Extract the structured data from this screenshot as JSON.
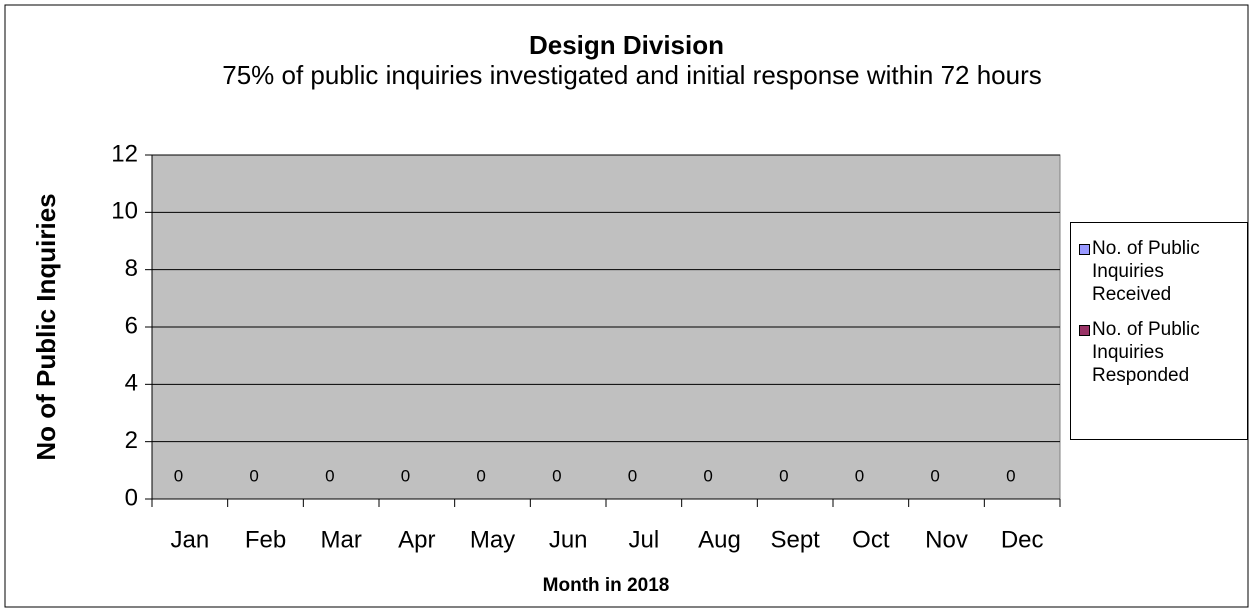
{
  "chart_data": {
    "type": "bar",
    "title": "Design Division",
    "subtitle": "75% of public inquiries investigated and initial response within 72 hours",
    "x_label": "Month in 2018",
    "y_label": "No of Public Inquiries",
    "categories": [
      "Jan",
      "Feb",
      "Mar",
      "Apr",
      "May",
      "Jun",
      "Jul",
      "Aug",
      "Sept",
      "Oct",
      "Nov",
      "Dec"
    ],
    "series": [
      {
        "name": "No. of Public Inquiries Received",
        "color": "#9999ff",
        "values": [
          0,
          0,
          0,
          0,
          0,
          0,
          0,
          0,
          0,
          0,
          0,
          0
        ]
      },
      {
        "name": "No. of Public Inquiries Responded",
        "color": "#993366",
        "values": [
          0,
          0,
          0,
          0,
          0,
          0,
          0,
          0,
          0,
          0,
          0,
          0
        ]
      }
    ],
    "ylim": [
      0,
      12
    ],
    "yticks": [
      0,
      2,
      4,
      6,
      8,
      10,
      12
    ],
    "grid": true,
    "legend": "right",
    "plot_background": "#c0c0c0"
  }
}
